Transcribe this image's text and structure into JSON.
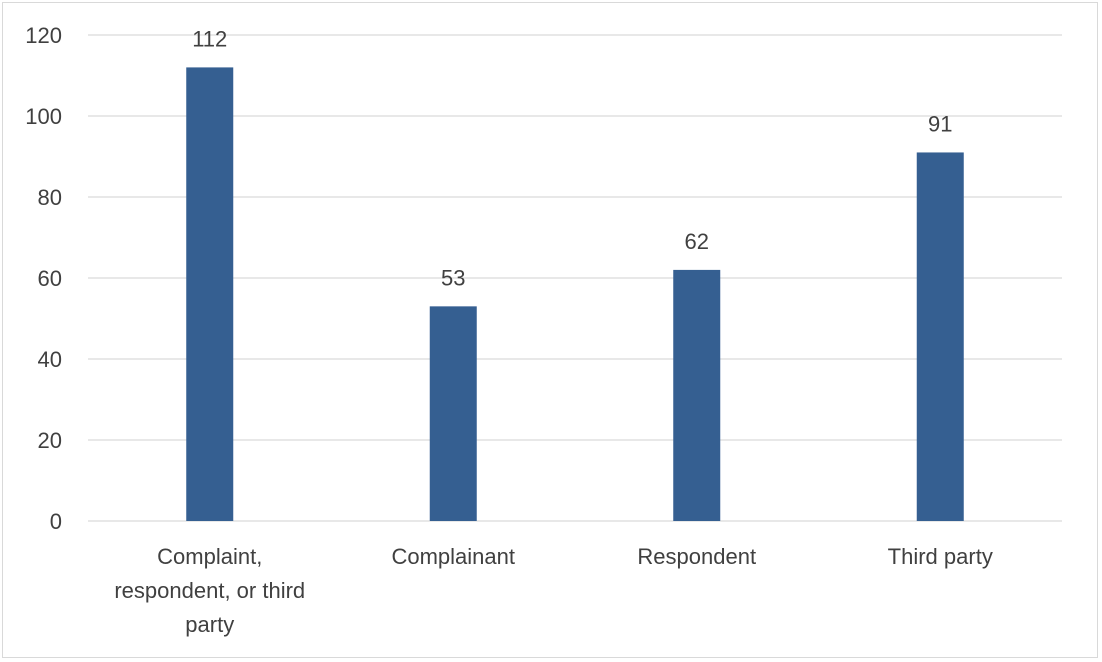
{
  "chart_data": {
    "type": "bar",
    "title": "",
    "xlabel": "",
    "ylabel": "",
    "categories": [
      "Complaint, respondent, or third party",
      "Complainant",
      "Respondent",
      "Third party"
    ],
    "category_lines": [
      [
        "Complaint,",
        "respondent, or third",
        "party"
      ],
      [
        "Complainant"
      ],
      [
        "Respondent"
      ],
      [
        "Third party"
      ]
    ],
    "values": [
      112,
      53,
      62,
      91
    ],
    "data_labels": [
      "112",
      "53",
      "62",
      "91"
    ],
    "ylim": [
      0,
      120
    ],
    "yticks": [
      0,
      20,
      40,
      60,
      80,
      100,
      120
    ],
    "ytick_labels": [
      "0",
      "20",
      "40",
      "60",
      "80",
      "100",
      "120"
    ],
    "grid": true,
    "legend": false,
    "bar_color": "#355f91",
    "grid_color": "#d9d9d9"
  }
}
